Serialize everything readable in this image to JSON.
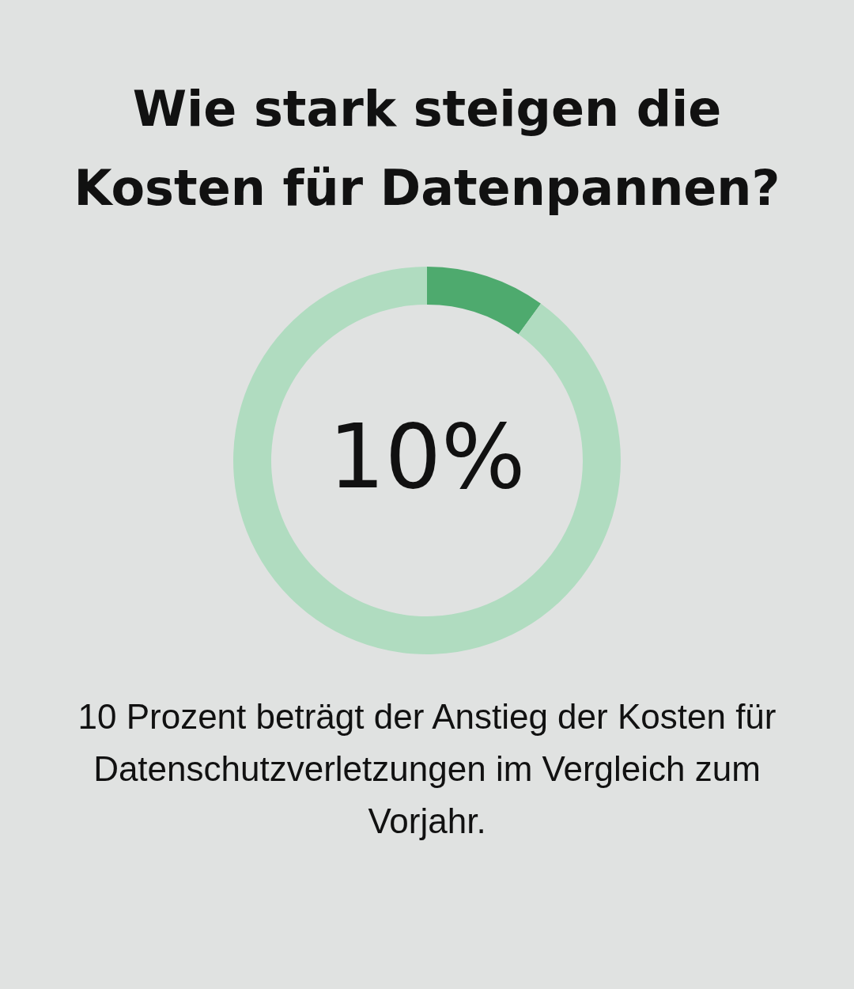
{
  "chart_data": {
    "type": "donut",
    "title": "Wie stark steigen die Kosten für Datenpannen?",
    "categories": [
      null,
      null
    ],
    "values": [
      10,
      90
    ],
    "colors": [
      "#4eaa6e",
      "#b0dcc0"
    ],
    "value_labels": [
      "10%",
      null
    ],
    "annotations": [
      "10 Prozent beträgt der Anstieg der Kosten für Datenschutzverletzungen im Vergleich zum Vorjahr."
    ]
  }
}
